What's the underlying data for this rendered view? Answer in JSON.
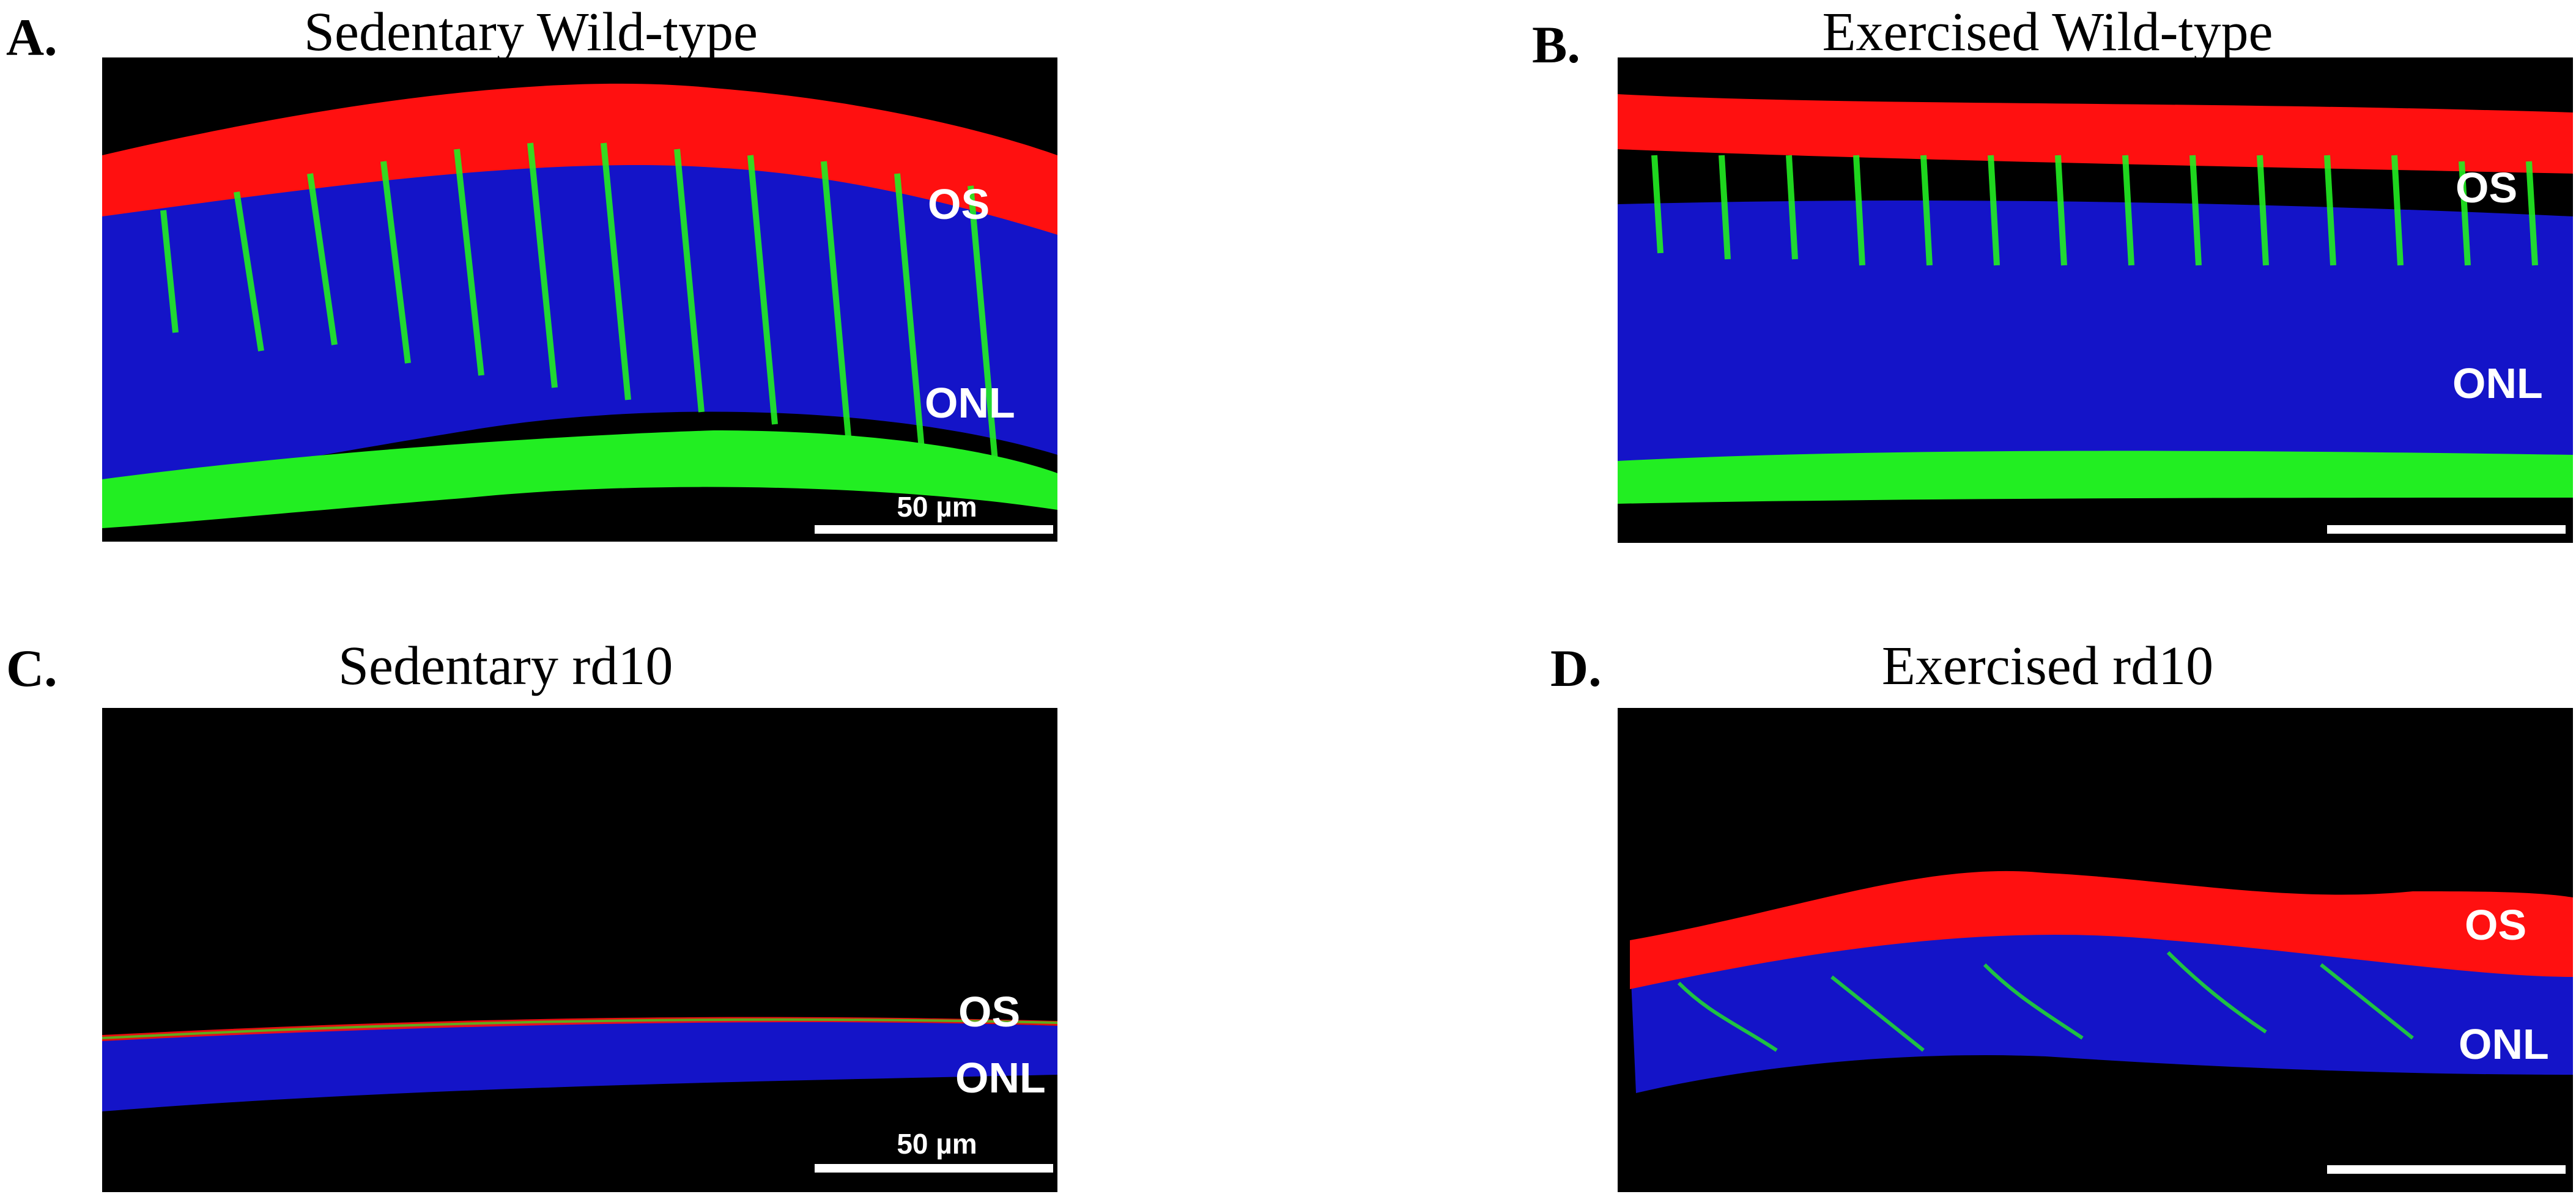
{
  "panels": [
    {
      "letter": "A.",
      "title": "Sedentary Wild-type",
      "layers": [
        "OS",
        "ONL"
      ],
      "scalebar_label": "50 µm"
    },
    {
      "letter": "B.",
      "title": "Exercised Wild-type",
      "layers": [
        "OS",
        "ONL"
      ],
      "scalebar_label": ""
    },
    {
      "letter": "C.",
      "title": "Sedentary rd10",
      "layers": [
        "OS",
        "ONL"
      ],
      "scalebar_label": "50 µm"
    },
    {
      "letter": "D.",
      "title": "Exercised rd10",
      "layers": [
        "OS",
        "ONL"
      ],
      "scalebar_label": ""
    }
  ],
  "colors": {
    "outer_segments": "#ff1010",
    "nuclei": "#1414c8",
    "cones": "#22ee22",
    "background": "#000000"
  }
}
